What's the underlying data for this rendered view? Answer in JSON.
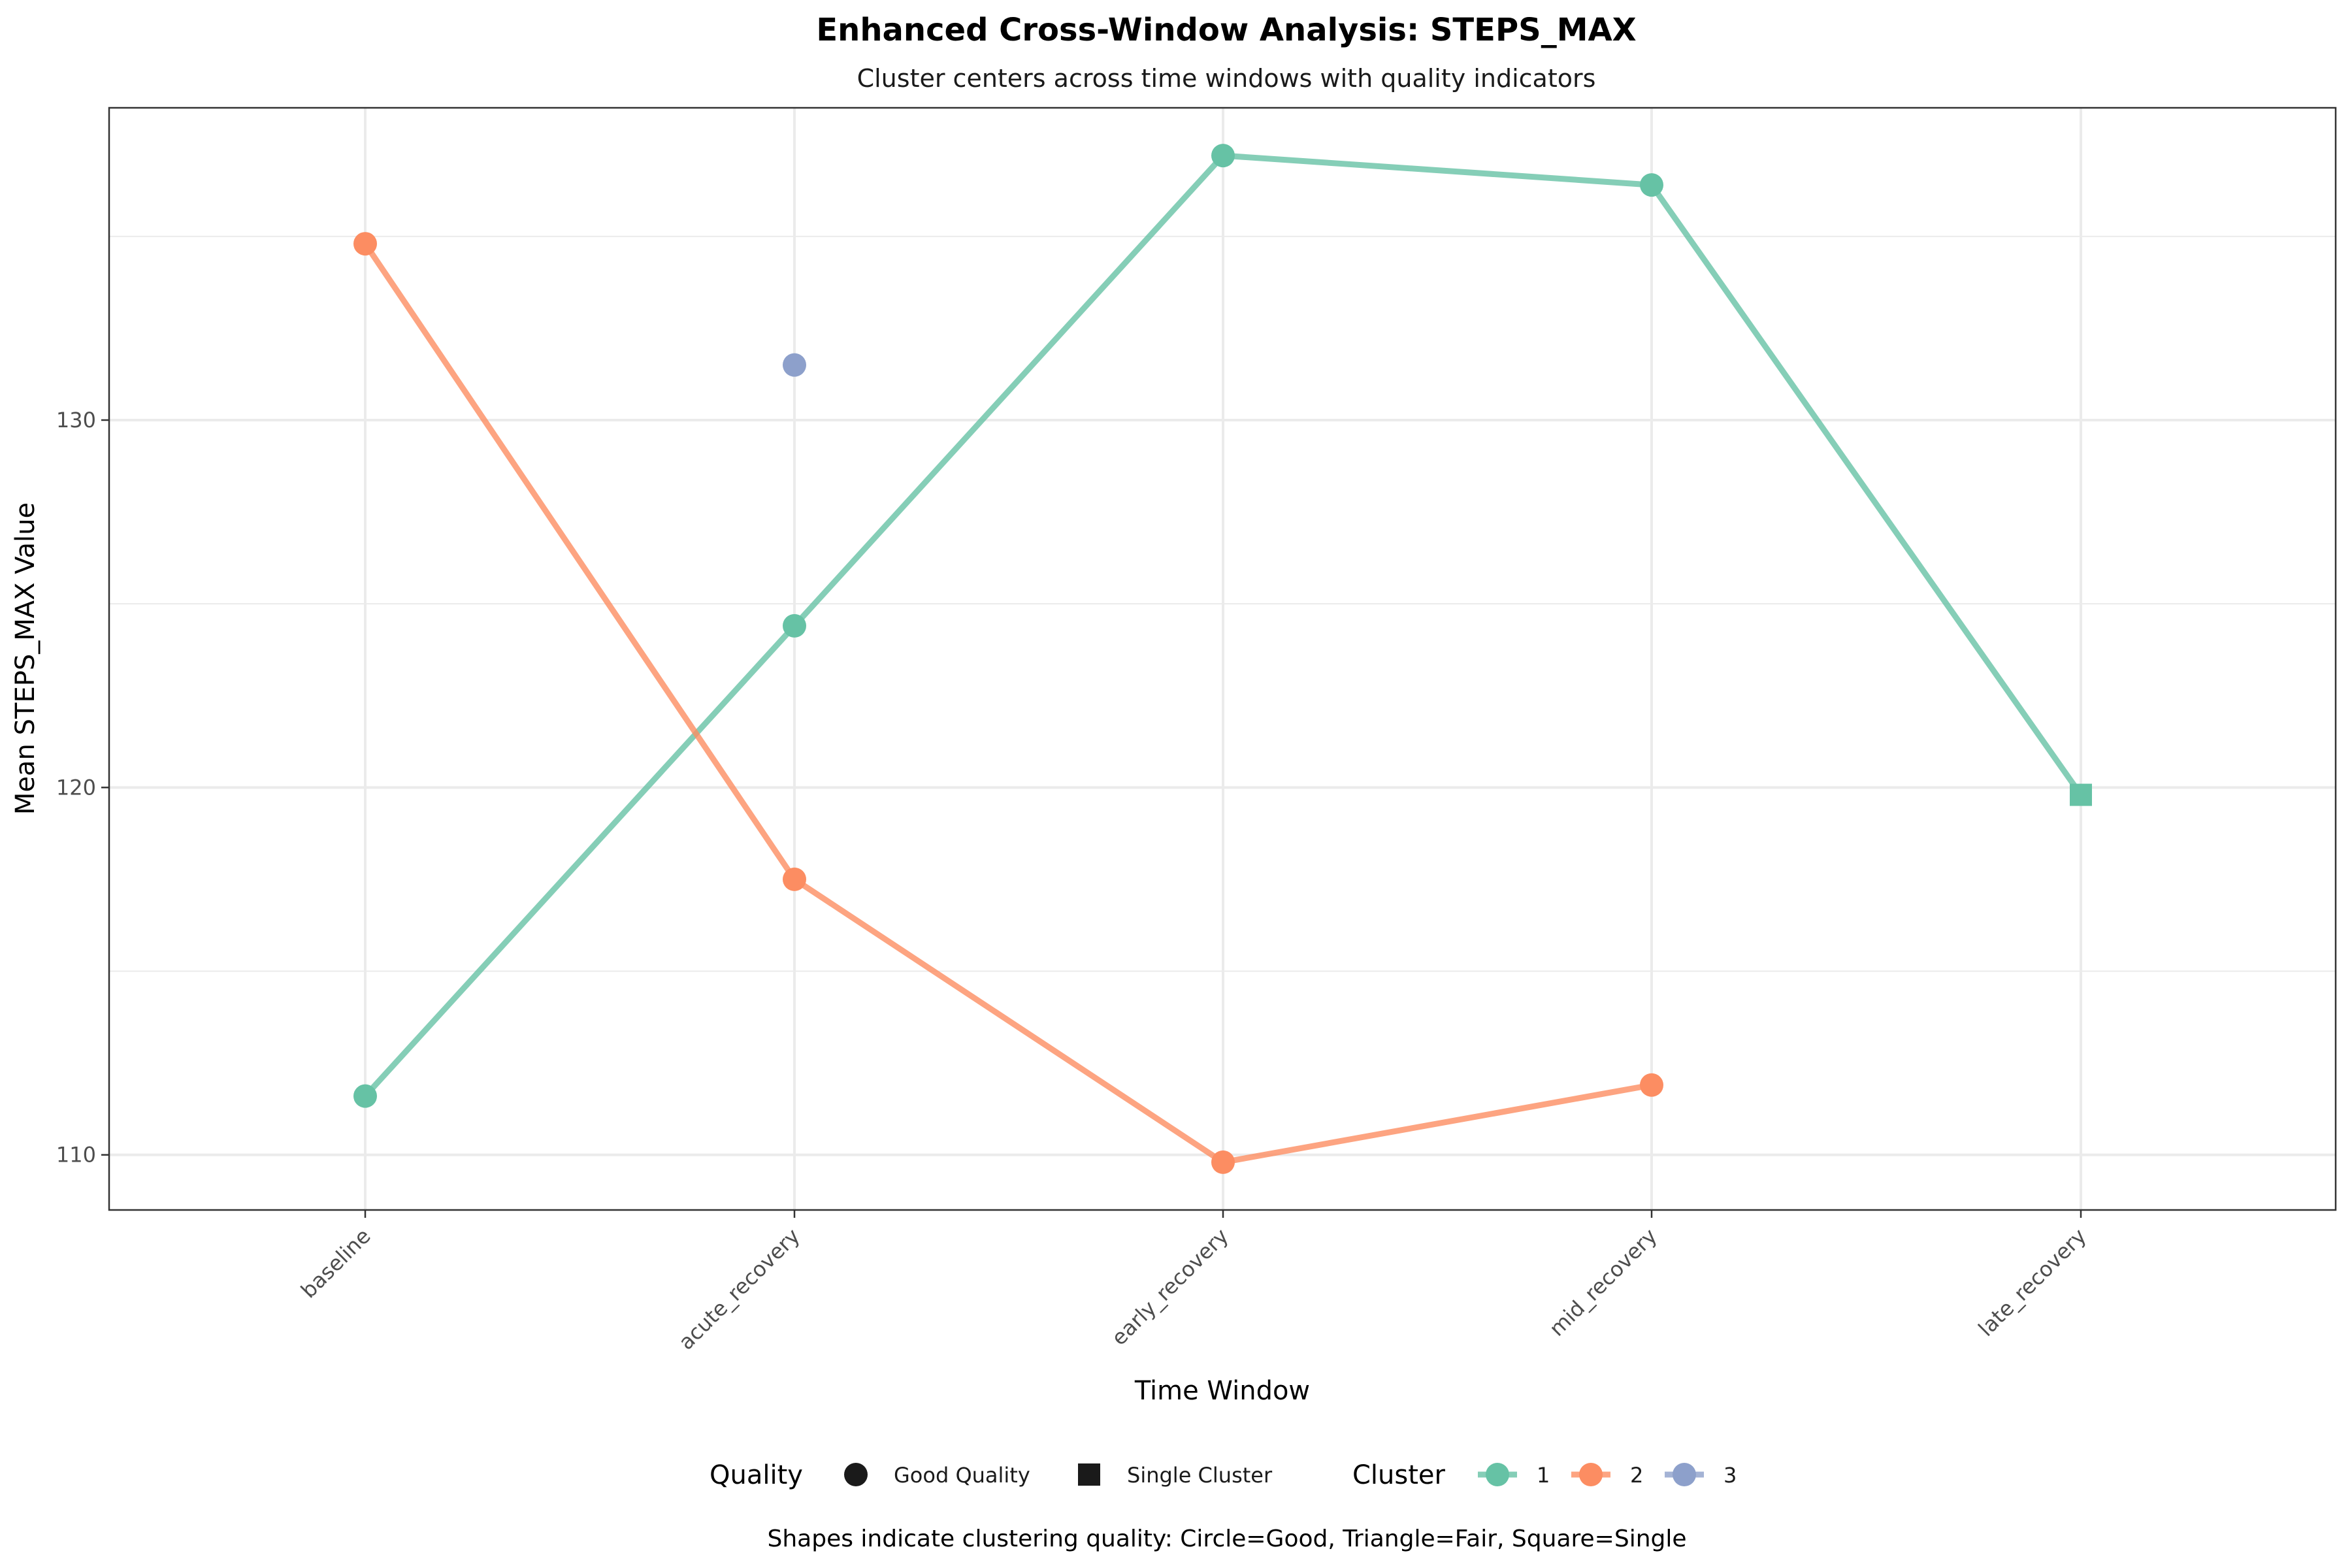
{
  "chart_data": {
    "type": "line",
    "title": "Enhanced Cross-Window Analysis: STEPS_MAX",
    "subtitle": "Cluster centers across time windows with quality indicators",
    "xlabel": "Time Window",
    "ylabel": "Mean STEPS_MAX Value",
    "caption": "Shapes indicate clustering quality: Circle=Good, Triangle=Fair, Square=Single",
    "categories": [
      "baseline",
      "acute_recovery",
      "early_recovery",
      "mid_recovery",
      "late_recovery"
    ],
    "ylim": [
      108.5,
      138.5
    ],
    "yticks": [
      110,
      120,
      130
    ],
    "grid": true,
    "legend_position": "bottom",
    "series": [
      {
        "name": "1",
        "color": "#66c2a5",
        "values": [
          111.6,
          124.4,
          137.2,
          136.4,
          119.8
        ],
        "shapes": [
          "circle",
          "circle",
          "circle",
          "circle",
          "square"
        ]
      },
      {
        "name": "2",
        "color": "#fc8d62",
        "values": [
          134.8,
          117.5,
          109.8,
          111.9,
          null
        ],
        "shapes": [
          "circle",
          "circle",
          "circle",
          "circle",
          null
        ]
      },
      {
        "name": "3",
        "color": "#8da0cb",
        "values": [
          null,
          131.5,
          null,
          null,
          null
        ],
        "shapes": [
          null,
          "circle",
          null,
          null,
          null
        ]
      }
    ],
    "legend": {
      "quality_title": "Quality",
      "quality_items": [
        {
          "label": "Good Quality",
          "shape": "circle"
        },
        {
          "label": "Single Cluster",
          "shape": "square"
        }
      ],
      "cluster_title": "Cluster"
    }
  }
}
